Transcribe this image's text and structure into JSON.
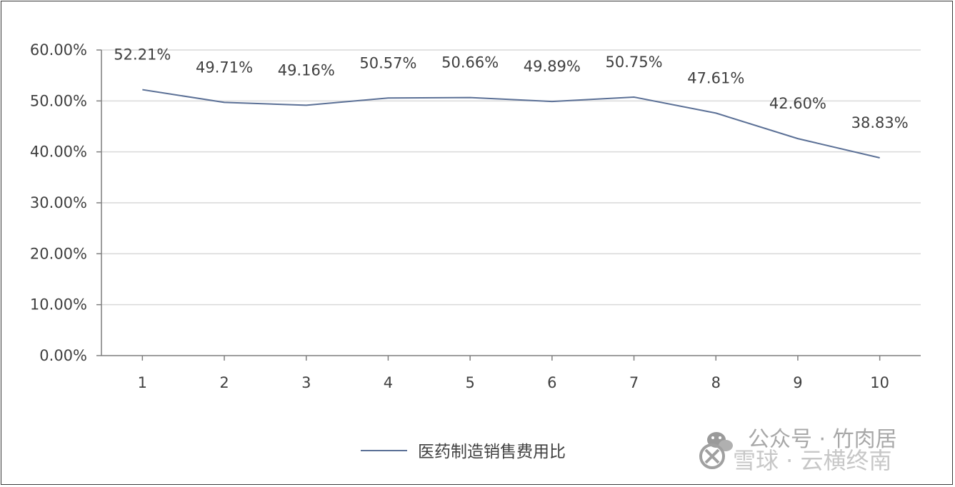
{
  "chart_data": {
    "type": "line",
    "title": "",
    "xlabel": "",
    "ylabel": "",
    "categories": [
      "1",
      "2",
      "3",
      "4",
      "5",
      "6",
      "7",
      "8",
      "9",
      "10"
    ],
    "series": [
      {
        "name": "医药制造销售费用比",
        "values": [
          52.21,
          49.71,
          49.16,
          50.57,
          50.66,
          49.89,
          50.75,
          47.61,
          42.6,
          38.83
        ],
        "labels": [
          "52.21%",
          "49.71%",
          "49.16%",
          "50.57%",
          "50.66%",
          "49.89%",
          "50.75%",
          "47.61%",
          "42.60%",
          "38.83%"
        ],
        "color": "#5b7096"
      }
    ],
    "ylim": [
      0,
      60
    ],
    "yticks": [
      "0.00%",
      "10.00%",
      "20.00%",
      "30.00%",
      "40.00%",
      "50.00%",
      "60.00%"
    ],
    "grid": true,
    "legend": "bottom-center"
  },
  "watermark": {
    "text": "公众号 · 竹肉居\n雪球 · 云横终南"
  },
  "colors": {
    "gridline": "#d9d9d9",
    "axis": "#7f7f7f",
    "line": "#5b7096",
    "text": "#404040"
  }
}
